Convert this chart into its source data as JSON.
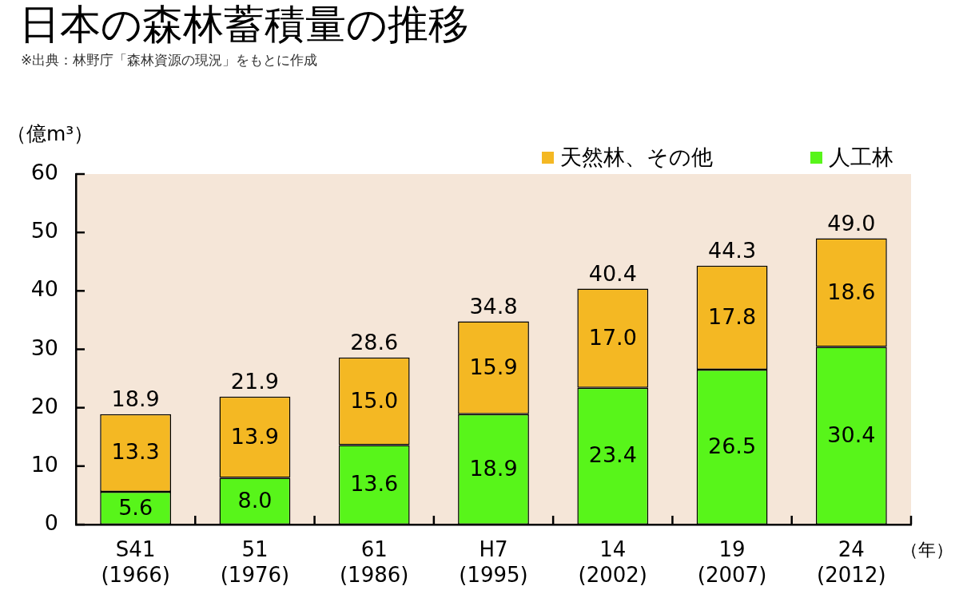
{
  "chart_data": {
    "type": "bar",
    "title": "日本の森林蓄積量の推移",
    "annotations": [
      "※出典：林野庁「森林資源の現況」をもとに作成"
    ],
    "ylabel": "（億m³）",
    "xlabel": "（年）",
    "categories": [
      "S41\n(1966)",
      "51\n(1976)",
      "61\n(1986)",
      "H7\n(1995)",
      "14\n(2002)",
      "19\n(2007)",
      "24\n(2012)"
    ],
    "stacked": true,
    "series": [
      {
        "name": "人工林",
        "color": "#58f51a",
        "values": [
          5.6,
          8.0,
          13.6,
          18.9,
          23.4,
          26.5,
          30.4
        ],
        "value_labels": [
          "5.6",
          "8.0",
          "13.6",
          "18.9",
          "23.4",
          "26.5",
          "30.4"
        ]
      },
      {
        "name": "天然林、その他",
        "color": "#f4b823",
        "values": [
          13.3,
          13.9,
          15.0,
          15.9,
          17.0,
          17.8,
          18.6
        ],
        "value_labels": [
          "13.3",
          "13.9",
          "15.0",
          "15.9",
          "17.0",
          "17.8",
          "18.6"
        ]
      }
    ],
    "totals": [
      "18.9",
      "21.9",
      "28.6",
      "34.8",
      "40.4",
      "44.3",
      "49.0"
    ],
    "ylim": [
      0,
      60
    ],
    "yticks": [
      0,
      10,
      20,
      30,
      40,
      50,
      60
    ],
    "legend": "top right"
  }
}
